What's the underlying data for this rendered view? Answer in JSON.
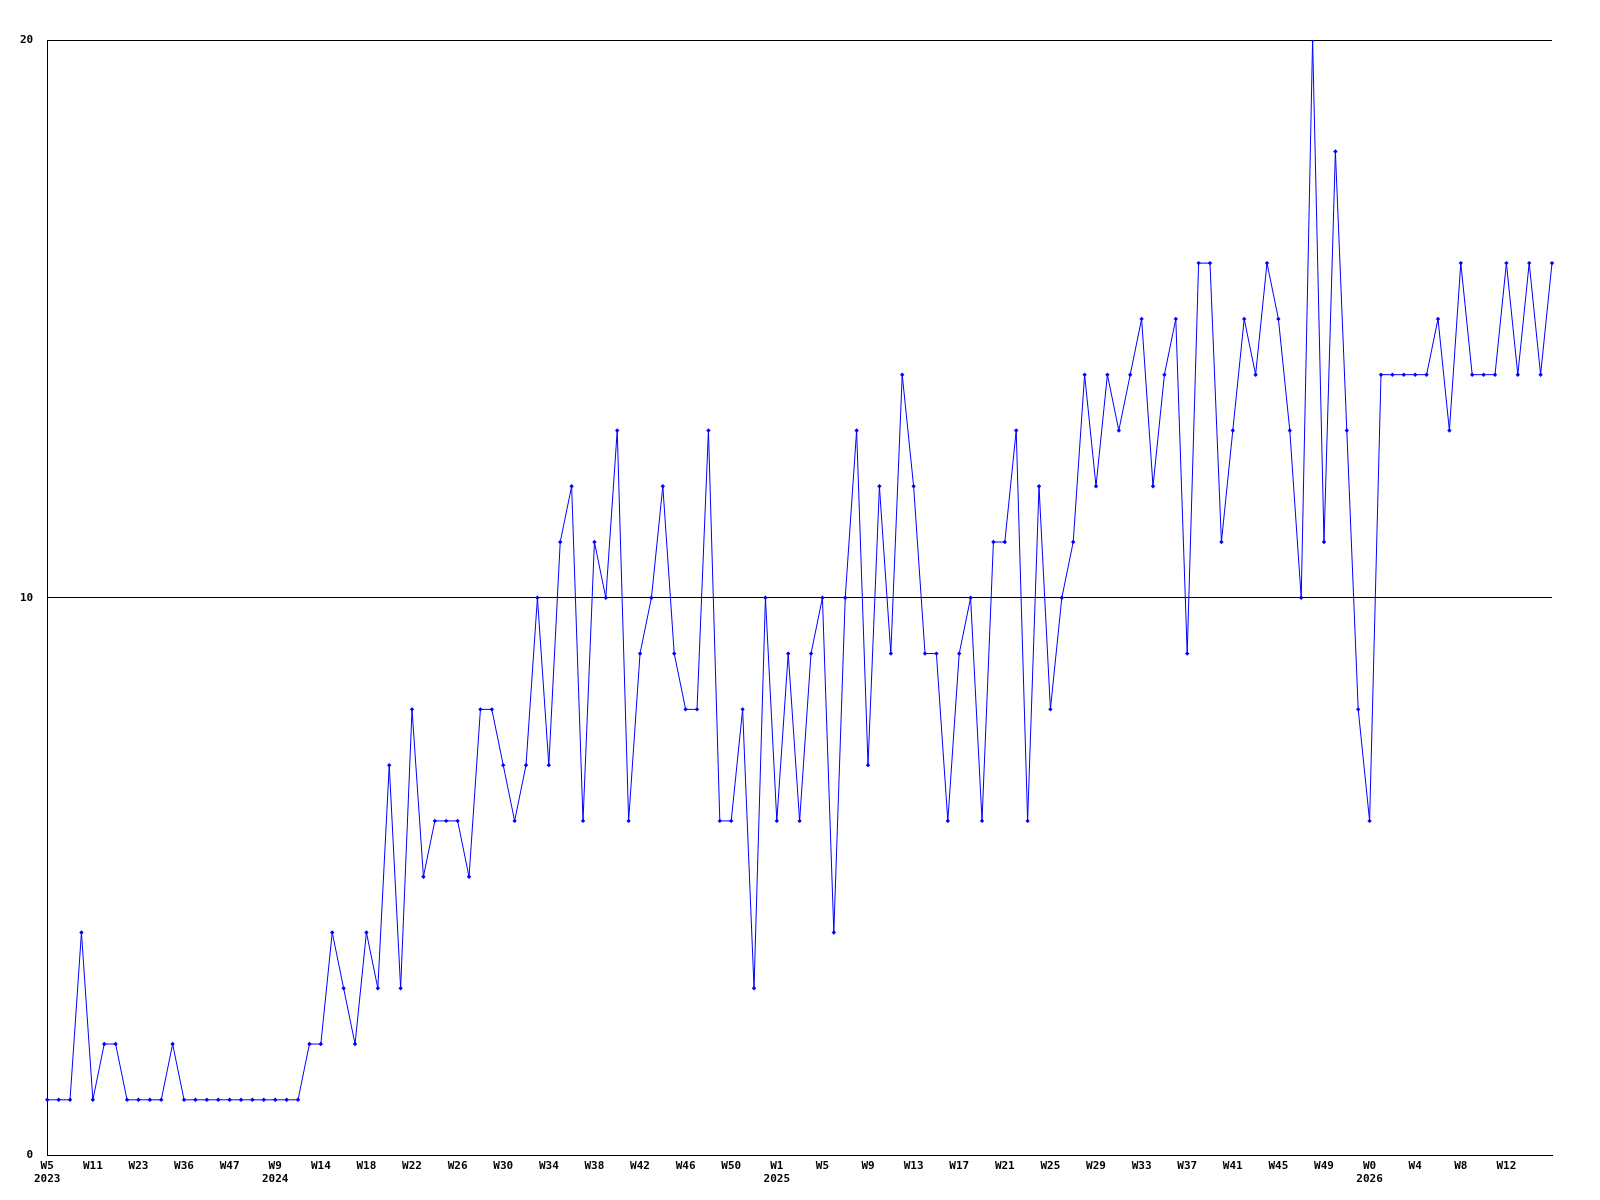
{
  "chart_data": {
    "type": "line",
    "categories": [
      "W5\n2023",
      null,
      null,
      null,
      "W11",
      null,
      null,
      null,
      "W23",
      null,
      null,
      null,
      "W36",
      null,
      null,
      null,
      "W47",
      null,
      null,
      null,
      "W9\n2024",
      null,
      null,
      null,
      "W14",
      null,
      null,
      null,
      "W18",
      null,
      null,
      null,
      "W22",
      null,
      null,
      null,
      "W26",
      null,
      null,
      null,
      "W30",
      null,
      null,
      null,
      "W34",
      null,
      null,
      null,
      "W38",
      null,
      null,
      null,
      "W42",
      null,
      null,
      null,
      "W46",
      null,
      null,
      null,
      "W50",
      null,
      null,
      null,
      "W1\n2025",
      null,
      null,
      null,
      "W5",
      null,
      null,
      null,
      "W9",
      null,
      null,
      null,
      "W13",
      null,
      null,
      null,
      "W17",
      null,
      null,
      null,
      "W21",
      null,
      null,
      null,
      "W25",
      null,
      null,
      null,
      "W29",
      null,
      null,
      null,
      "W33",
      null,
      null,
      null,
      "W37",
      null,
      null,
      null,
      "W41",
      null,
      null,
      null,
      "W45",
      null,
      null,
      null,
      "W49",
      null,
      null,
      null,
      "W0\n2026",
      null,
      null,
      null,
      "W4",
      null,
      null,
      null,
      "W8",
      null,
      null,
      null,
      "W12",
      null,
      null,
      null,
      null
    ],
    "series": [
      {
        "color": "#0000ff",
        "values": [
          1,
          1,
          1,
          4,
          1,
          2,
          2,
          1,
          1,
          1,
          1,
          2,
          1,
          1,
          1,
          1,
          1,
          1,
          1,
          1,
          1,
          1,
          1,
          2,
          2,
          4,
          3,
          2,
          4,
          3,
          7,
          3,
          8,
          5,
          6,
          6,
          6,
          5,
          8,
          8,
          7,
          6,
          7,
          10,
          7,
          11,
          12,
          6,
          11,
          10,
          13,
          6,
          9,
          10,
          12,
          9,
          8,
          8,
          13,
          6,
          6,
          8,
          3,
          10,
          6,
          9,
          6,
          9,
          10,
          4,
          10,
          13,
          7,
          12,
          9,
          14,
          12,
          9,
          9,
          6,
          9,
          10,
          6,
          11,
          11,
          13,
          6,
          12,
          8,
          10,
          11,
          14,
          12,
          14,
          13,
          14,
          15,
          12,
          14,
          15,
          9,
          16,
          16,
          11,
          13,
          15,
          14,
          16,
          15,
          13,
          10,
          20,
          11,
          18,
          13,
          8,
          6,
          14,
          14,
          14,
          14,
          14,
          15,
          13,
          16,
          14,
          14,
          14,
          16,
          14,
          16,
          14,
          16
        ]
      }
    ],
    "ylim": [
      0,
      20
    ],
    "yticks": [
      0,
      10,
      20
    ],
    "grid": "y",
    "legend": false,
    "marker": "diamond",
    "line_style": "solid"
  }
}
